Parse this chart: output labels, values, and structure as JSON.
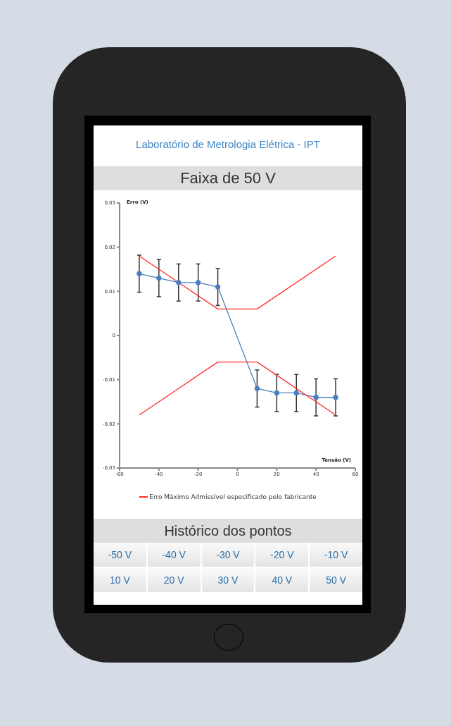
{
  "chart_data": {
    "type": "line",
    "title": "Faixa de 50 V",
    "subtitle": "Laboratório de Metrologia Elétrica - IPT",
    "xlabel": "Tensão (V)",
    "ylabel": "Erro (V)",
    "annotations": [
      "Histórico dos pontos",
      "-50 V",
      "-40 V",
      "-30 V",
      "-20 V",
      "-10 V",
      "10 V",
      "20 V",
      "30 V",
      "40 V",
      "50 V"
    ],
    "xlim": [
      -60,
      60
    ],
    "xticks": [
      -60,
      -40,
      -20,
      0,
      20,
      40,
      60
    ],
    "ylim": [
      -0.03,
      0.03
    ],
    "yticks": [
      {
        "value": -0.03,
        "label": "-0,03"
      },
      {
        "value": -0.02,
        "label": "-0,02"
      },
      {
        "value": -0.01,
        "label": "-0,01"
      },
      0,
      {
        "value": 0.01,
        "label": "0,01"
      },
      {
        "value": 0.02,
        "label": "0,02"
      },
      {
        "value": 0.03,
        "label": "0,03"
      }
    ],
    "legend": "bottom",
    "line_style": "solid",
    "series": [
      {
        "color": "#4a7ebf",
        "marker": "circle",
        "x": [
          -50,
          -40,
          -30,
          -20,
          -10,
          10,
          20,
          30,
          40,
          50
        ],
        "values": [
          0.014,
          0.013,
          0.012,
          0.012,
          0.011,
          -0.012,
          -0.013,
          -0.013,
          -0.014,
          -0.014
        ],
        "errors": [
          0.0042,
          0.0042,
          0.0042,
          0.0042,
          0.0042,
          0.0042,
          0.0042,
          0.0042,
          0.0042,
          0.0042
        ]
      },
      {
        "name": "Erro Máximo Admissível especificado pelo fabricante",
        "color": "#ff2a2a",
        "marker": "none",
        "x": [
          -50,
          -10,
          10,
          50
        ],
        "values": [
          0.018,
          0.006,
          0.006,
          0.018
        ]
      },
      {
        "color": "#ff2a2a",
        "marker": "none",
        "x": [
          -50,
          -10,
          10,
          50
        ],
        "values": [
          -0.018,
          -0.006,
          -0.006,
          -0.018
        ]
      }
    ]
  }
}
